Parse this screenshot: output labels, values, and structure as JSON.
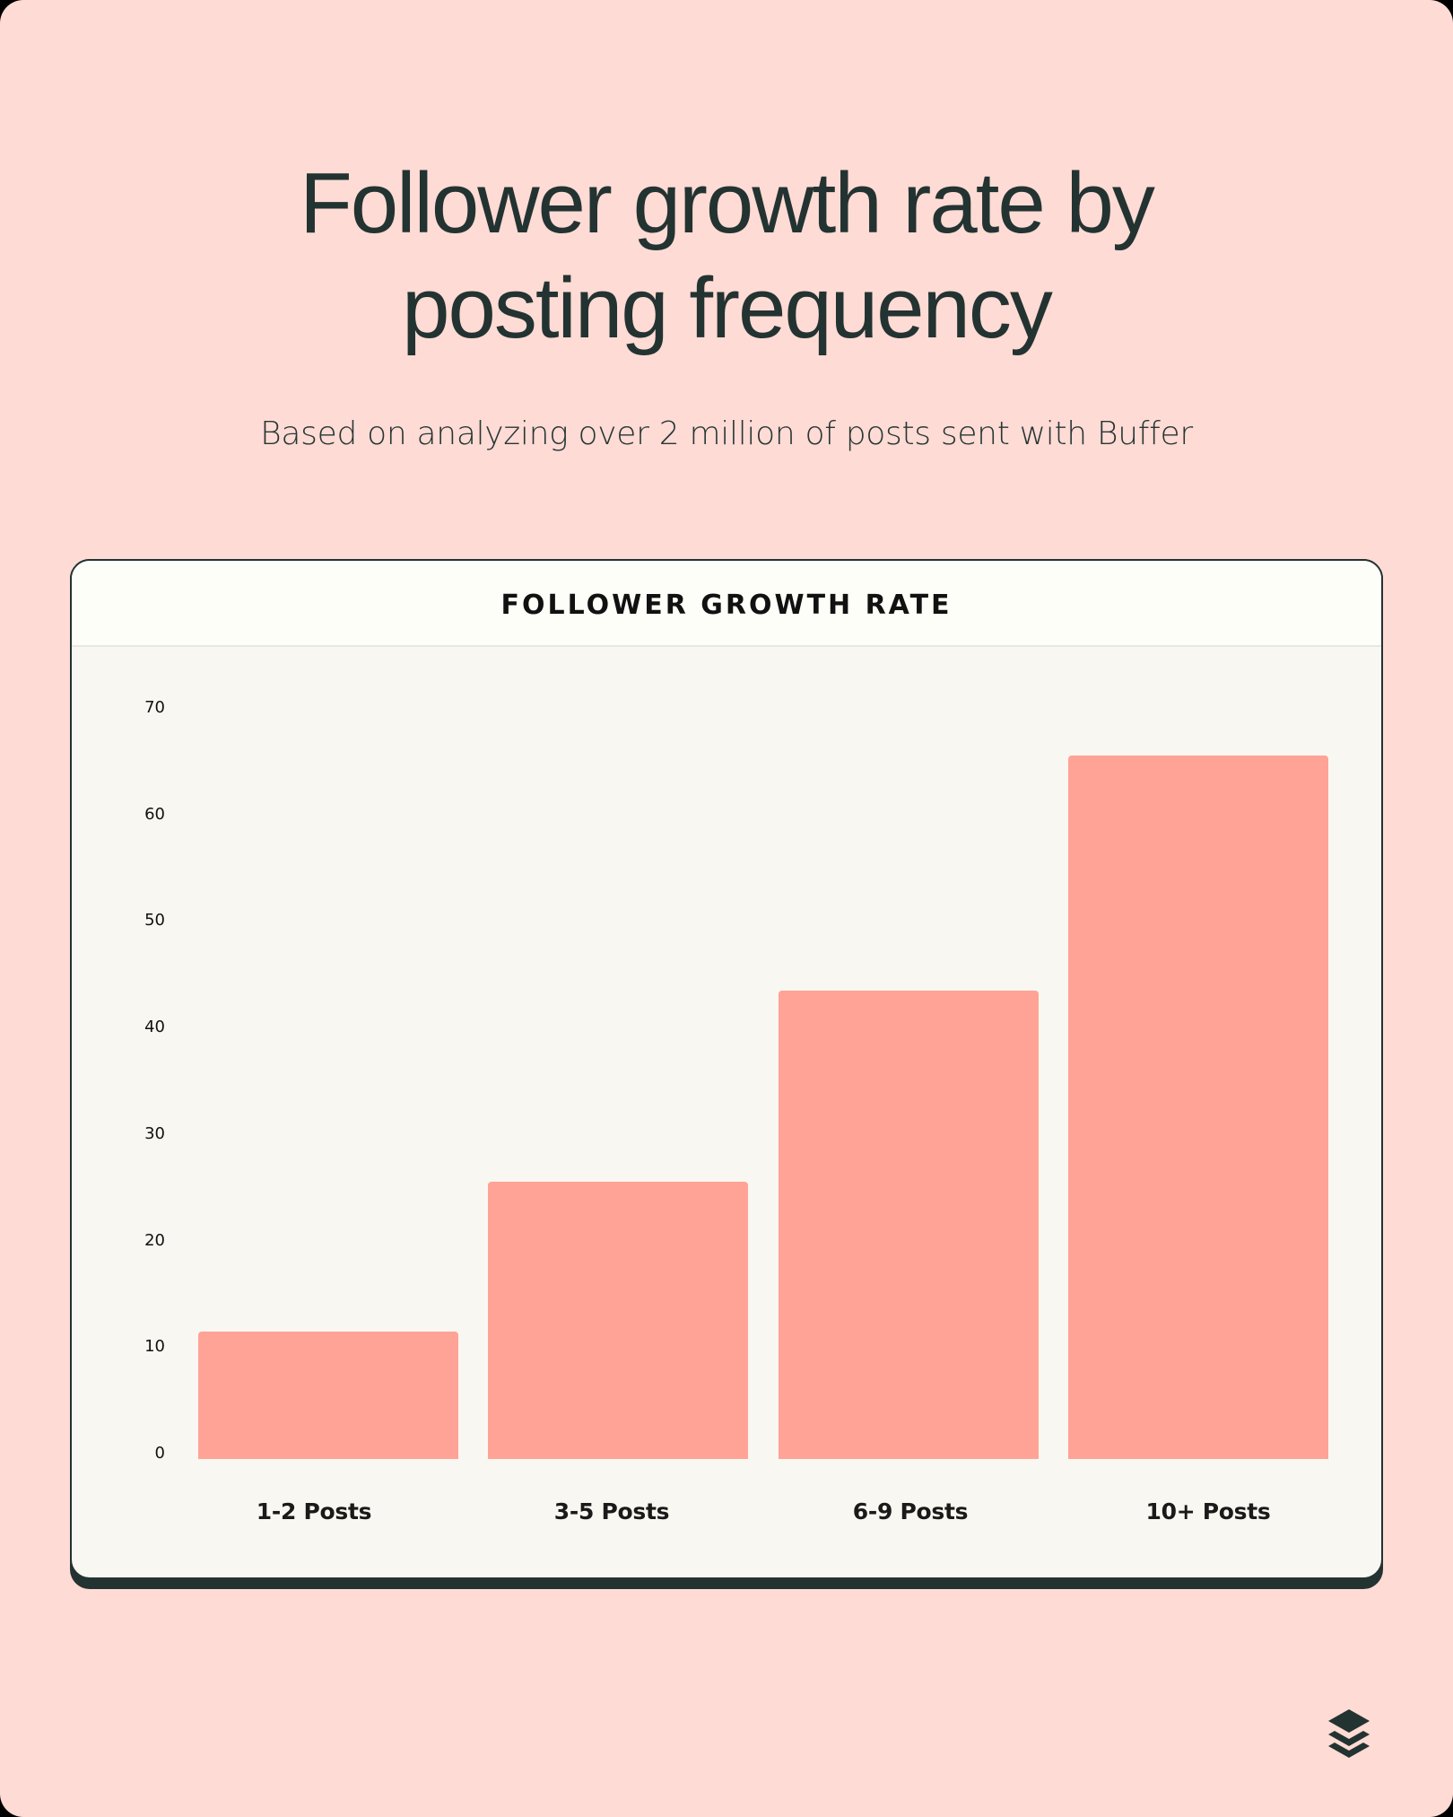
{
  "header": {
    "title_line1": "Follower growth rate by",
    "title_line2": "posting frequency",
    "subtitle": "Based on analyzing over 2 million of posts sent with Buffer"
  },
  "card": {
    "title": "FOLLOWER GROWTH RATE"
  },
  "colors": {
    "background": "#FFDBD5",
    "bar": "#FFA396",
    "text": "#233331",
    "card_body": "#F9F7F1",
    "card_header": "#FEFEF8"
  },
  "logo": {
    "icon": "buffer-stack-icon"
  },
  "chart_data": {
    "type": "bar",
    "title": "FOLLOWER GROWTH RATE",
    "subtitle": "Based on analyzing over 2 million of posts sent with Buffer",
    "categories": [
      "1-2 Posts",
      "3-5 Posts",
      "6-9 Posts",
      "10+ Posts"
    ],
    "values": [
      12,
      26,
      44,
      66
    ],
    "xlabel": "",
    "ylabel": "",
    "ylim": [
      0,
      70
    ],
    "yticks": [
      0,
      10,
      20,
      30,
      40,
      50,
      60,
      70
    ],
    "grid": false,
    "legend": null
  }
}
